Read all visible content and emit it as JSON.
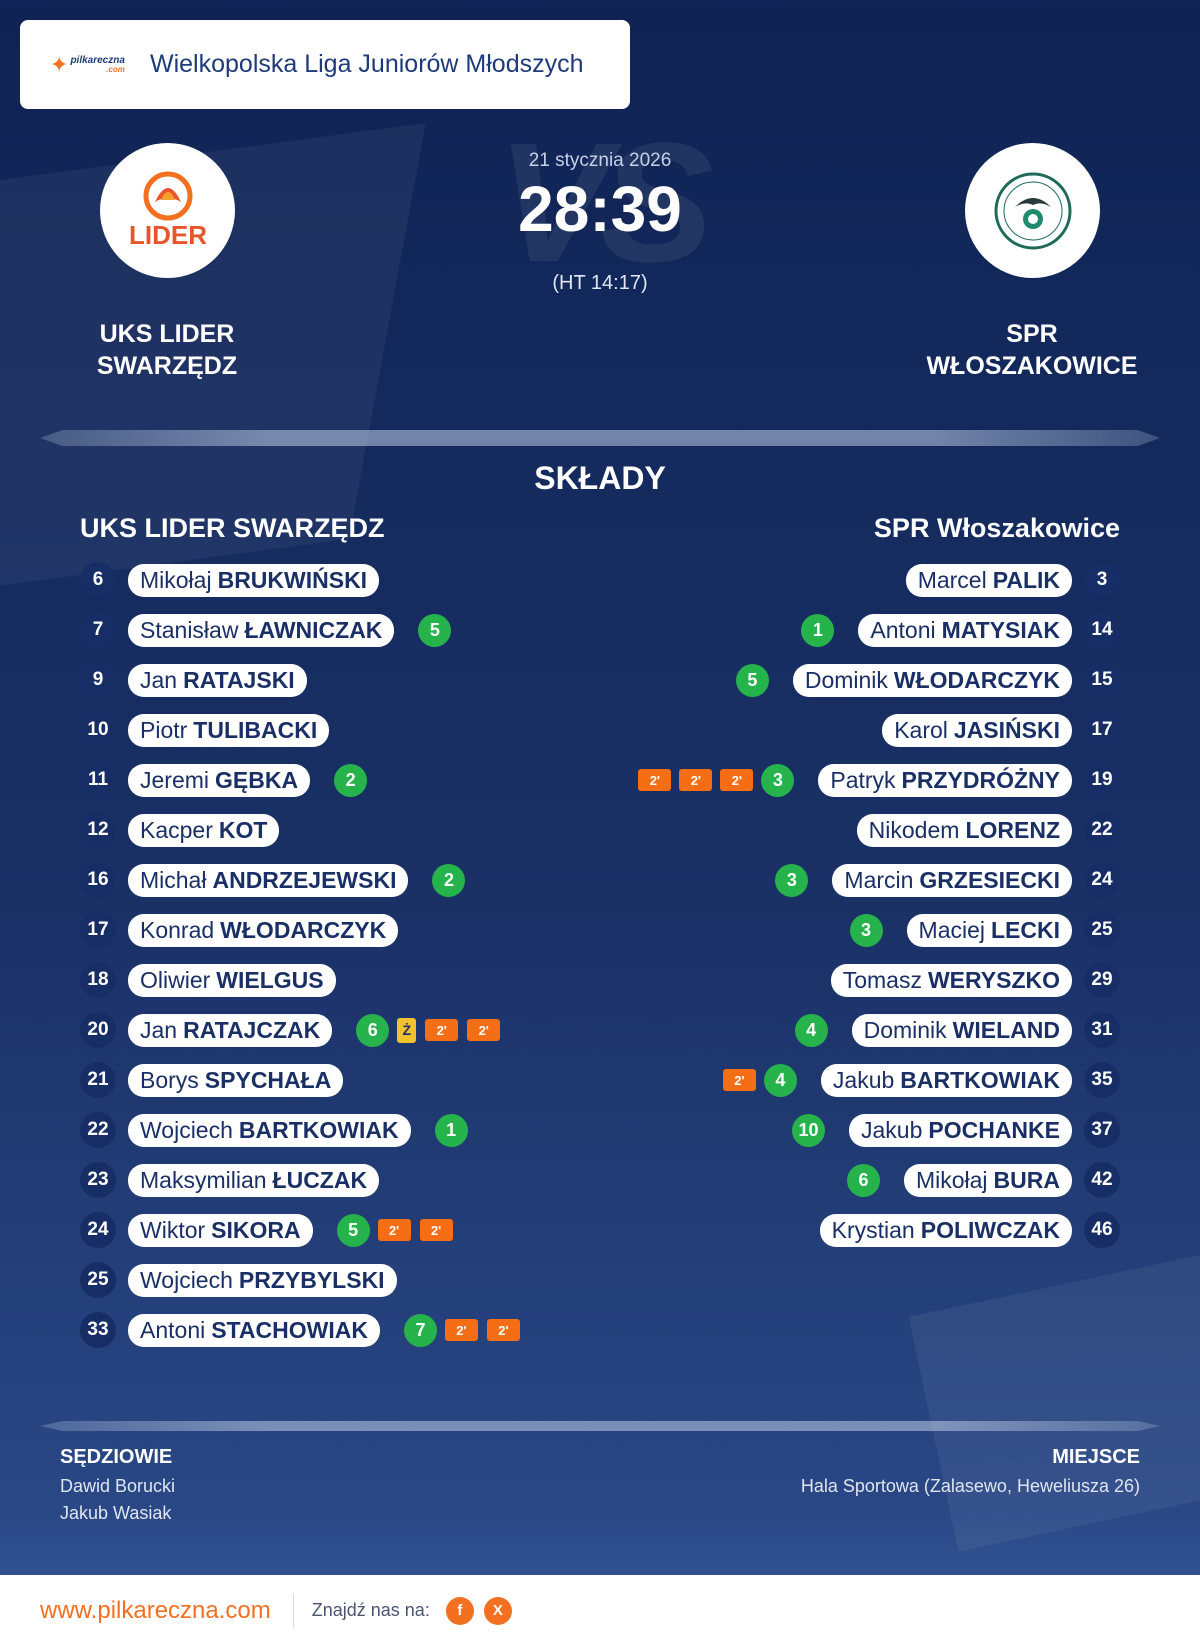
{
  "header": {
    "logo_text": "pilkareczna",
    "logo_suffix": ".com",
    "league": "Wielkopolska Liga Juniorów Młodszych"
  },
  "match": {
    "date": "21 stycznia 2026",
    "score": "28:39",
    "halftime": "(HT 14:17)",
    "vs_text": "VS"
  },
  "home": {
    "name_line1": "UKS LIDER",
    "name_line2": "SWARZĘDZ",
    "logo_text": "LIDER",
    "roster_title": "UKS LIDER SWARZĘDZ"
  },
  "away": {
    "name_line1": "SPR",
    "name_line2": "WŁOSZAKOWICE",
    "roster_title": "SPR Włoszakowice"
  },
  "section_title": "SKŁADY",
  "home_players": [
    {
      "num": "6",
      "first": "Mikołaj",
      "last": "BRUKWIŃSKI",
      "stats": []
    },
    {
      "num": "7",
      "first": "Stanisław",
      "last": "ŁAWNICZAK",
      "stats": [
        {
          "t": "goal",
          "v": "5"
        }
      ]
    },
    {
      "num": "9",
      "first": "Jan",
      "last": "RATAJSKI",
      "stats": []
    },
    {
      "num": "10",
      "first": "Piotr",
      "last": "TULIBACKI",
      "stats": []
    },
    {
      "num": "11",
      "first": "Jeremi",
      "last": "GĘBKA",
      "stats": [
        {
          "t": "goal",
          "v": "2"
        }
      ]
    },
    {
      "num": "12",
      "first": "Kacper",
      "last": "KOT",
      "stats": []
    },
    {
      "num": "16",
      "first": "Michał",
      "last": "ANDRZEJEWSKI",
      "stats": [
        {
          "t": "goal",
          "v": "2"
        }
      ]
    },
    {
      "num": "17",
      "first": "Konrad",
      "last": "WŁODARCZYK",
      "stats": []
    },
    {
      "num": "18",
      "first": "Oliwier",
      "last": "WIELGUS",
      "stats": []
    },
    {
      "num": "20",
      "first": "Jan",
      "last": "RATAJCZAK",
      "stats": [
        {
          "t": "goal",
          "v": "6"
        },
        {
          "t": "yellow",
          "v": "Ż"
        },
        {
          "t": "pen",
          "v": "2'"
        },
        {
          "t": "pen",
          "v": "2'"
        }
      ]
    },
    {
      "num": "21",
      "first": "Borys",
      "last": "SPYCHAŁA",
      "stats": []
    },
    {
      "num": "22",
      "first": "Wojciech",
      "last": "BARTKOWIAK",
      "stats": [
        {
          "t": "goal",
          "v": "1"
        }
      ]
    },
    {
      "num": "23",
      "first": "Maksymilian",
      "last": "ŁUCZAK",
      "stats": []
    },
    {
      "num": "24",
      "first": "Wiktor",
      "last": "SIKORA",
      "stats": [
        {
          "t": "goal",
          "v": "5"
        },
        {
          "t": "pen",
          "v": "2'"
        },
        {
          "t": "pen",
          "v": "2'"
        }
      ]
    },
    {
      "num": "25",
      "first": "Wojciech",
      "last": "PRZYBYLSKI",
      "stats": []
    },
    {
      "num": "33",
      "first": "Antoni",
      "last": "STACHOWIAK",
      "stats": [
        {
          "t": "goal",
          "v": "7"
        },
        {
          "t": "pen",
          "v": "2'"
        },
        {
          "t": "pen",
          "v": "2'"
        }
      ]
    }
  ],
  "away_players": [
    {
      "num": "3",
      "first": "Marcel",
      "last": "PALIK",
      "stats": []
    },
    {
      "num": "14",
      "first": "Antoni",
      "last": "MATYSIAK",
      "stats": [
        {
          "t": "goal",
          "v": "1"
        }
      ]
    },
    {
      "num": "15",
      "first": "Dominik",
      "last": "WŁODARCZYK",
      "stats": [
        {
          "t": "goal",
          "v": "5"
        }
      ]
    },
    {
      "num": "17",
      "first": "Karol",
      "last": "JASIŃSKI",
      "stats": []
    },
    {
      "num": "19",
      "first": "Patryk",
      "last": "PRZYDRÓŻNY",
      "stats": [
        {
          "t": "goal",
          "v": "3"
        },
        {
          "t": "pen",
          "v": "2'"
        },
        {
          "t": "pen",
          "v": "2'"
        },
        {
          "t": "pen",
          "v": "2'"
        }
      ]
    },
    {
      "num": "22",
      "first": "Nikodem",
      "last": "LORENZ",
      "stats": []
    },
    {
      "num": "24",
      "first": "Marcin",
      "last": "GRZESIECKI",
      "stats": [
        {
          "t": "goal",
          "v": "3"
        }
      ]
    },
    {
      "num": "25",
      "first": "Maciej",
      "last": "LECKI",
      "stats": [
        {
          "t": "goal",
          "v": "3"
        }
      ]
    },
    {
      "num": "29",
      "first": "Tomasz",
      "last": "WERYSZKO",
      "stats": []
    },
    {
      "num": "31",
      "first": "Dominik",
      "last": "WIELAND",
      "stats": [
        {
          "t": "goal",
          "v": "4"
        }
      ]
    },
    {
      "num": "35",
      "first": "Jakub",
      "last": "BARTKOWIAK",
      "stats": [
        {
          "t": "goal",
          "v": "4"
        },
        {
          "t": "pen",
          "v": "2'"
        }
      ]
    },
    {
      "num": "37",
      "first": "Jakub",
      "last": "POCHANKE",
      "stats": [
        {
          "t": "goal",
          "v": "10"
        }
      ]
    },
    {
      "num": "42",
      "first": "Mikołaj",
      "last": "BURA",
      "stats": [
        {
          "t": "goal",
          "v": "6"
        }
      ]
    },
    {
      "num": "46",
      "first": "Krystian",
      "last": "POLIWCZAK",
      "stats": []
    }
  ],
  "referees": {
    "title": "SĘDZIOWIE",
    "names": [
      "Dawid Borucki",
      "Jakub Wasiak"
    ]
  },
  "venue": {
    "title": "MIEJSCE",
    "name": "Hala Sportowa (Zalasewo, Heweliusza 26)"
  },
  "footer": {
    "url": "www.pilkareczna.com",
    "find_us": "Znajdź nas na:",
    "social": [
      {
        "icon": "facebook-icon",
        "glyph": "f"
      },
      {
        "icon": "x-icon",
        "glyph": "X"
      }
    ]
  },
  "colors": {
    "brand_orange": "#f37021",
    "navy": "#172d66",
    "goal_green": "#27b34b",
    "penalty_orange": "#f56e16",
    "yellow_card": "#f2c12e"
  }
}
